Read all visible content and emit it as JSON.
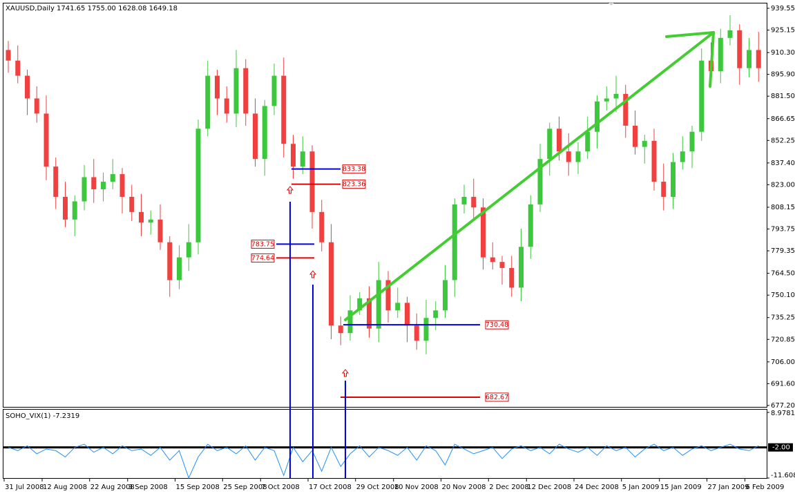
{
  "chart_data": [
    {
      "type": "candlestick",
      "title": "XAUUSD,Daily  1741.65 1755.00 1628.08 1649.18",
      "categories": [
        "31 Jul 2008",
        null,
        null,
        null,
        "12 Aug 2008",
        null,
        null,
        null,
        null,
        "22 Aug 2008",
        null,
        null,
        null,
        "3 Sep 2008",
        null,
        null,
        null,
        null,
        "15 Sep 2008",
        null,
        null,
        null,
        null,
        "25 Sep 2008",
        null,
        null,
        null,
        "7 Oct 2008",
        null,
        null,
        null,
        null,
        "17 Oct 2008",
        null,
        null,
        null,
        null,
        "29 Oct 2008",
        null,
        null,
        null,
        "10 Nov 2008",
        null,
        null,
        null,
        null,
        "20 Nov 2008",
        null,
        null,
        null,
        null,
        "2 Dec 2008",
        null,
        null,
        null,
        "12 Dec 2008",
        null,
        null,
        null,
        null,
        "24 Dec 2008",
        null,
        null,
        null,
        null,
        "5 Jan 2009",
        null,
        null,
        null,
        "15 Jan 2009",
        null,
        null,
        null,
        null,
        "27 Jan 2009",
        null,
        null,
        null,
        "6 Feb 2009",
        null
      ],
      "open": [
        912,
        905,
        895,
        880,
        870,
        835,
        815,
        800,
        812,
        828,
        820,
        825,
        830,
        815,
        805,
        798,
        800,
        785,
        760,
        775,
        785,
        860,
        895,
        880,
        870,
        900,
        870,
        840,
        875,
        895,
        850,
        835,
        845,
        805,
        785,
        730,
        725,
        740,
        748,
        728,
        760,
        740,
        745,
        730,
        720,
        735,
        740,
        760,
        810,
        815,
        808,
        775,
        772,
        768,
        755,
        782,
        810,
        840,
        860,
        845,
        838,
        845,
        858,
        878,
        880,
        883,
        862,
        848,
        852,
        825,
        815,
        838,
        845,
        858,
        905,
        898,
        920,
        925,
        900,
        912
      ],
      "high": [
        918,
        915,
        899,
        888,
        882,
        841,
        825,
        816,
        836,
        840,
        831,
        840,
        834,
        823,
        817,
        806,
        810,
        789,
        783,
        797,
        866,
        905,
        899,
        888,
        912,
        906,
        880,
        879,
        903,
        907,
        856,
        855,
        849,
        813,
        797,
        736,
        750,
        752,
        756,
        772,
        766,
        755,
        749,
        738,
        747,
        746,
        770,
        814,
        823,
        827,
        814,
        785,
        776,
        776,
        794,
        816,
        850,
        864,
        868,
        857,
        851,
        868,
        882,
        888,
        895,
        889,
        872,
        856,
        860,
        837,
        844,
        855,
        862,
        913,
        917,
        926,
        935,
        929,
        920,
        924
      ],
      "low": [
        897,
        890,
        869,
        864,
        826,
        807,
        795,
        789,
        806,
        811,
        812,
        820,
        804,
        799,
        789,
        790,
        780,
        749,
        754,
        766,
        777,
        855,
        869,
        864,
        861,
        862,
        835,
        829,
        869,
        841,
        827,
        830,
        794,
        779,
        721,
        717,
        720,
        737,
        722,
        719,
        732,
        735,
        719,
        714,
        711,
        727,
        735,
        749,
        804,
        799,
        767,
        767,
        757,
        749,
        746,
        774,
        805,
        829,
        839,
        829,
        830,
        840,
        847,
        872,
        871,
        854,
        843,
        837,
        819,
        806,
        807,
        833,
        834,
        852,
        889,
        890,
        915,
        889,
        894,
        891
      ],
      "close": [
        905,
        895,
        880,
        870,
        835,
        815,
        800,
        812,
        828,
        820,
        825,
        830,
        815,
        805,
        798,
        800,
        785,
        760,
        775,
        785,
        860,
        895,
        880,
        870,
        900,
        870,
        840,
        875,
        895,
        850,
        835,
        845,
        805,
        785,
        730,
        725,
        740,
        748,
        728,
        760,
        740,
        745,
        730,
        720,
        735,
        740,
        760,
        810,
        815,
        808,
        775,
        772,
        768,
        755,
        782,
        810,
        840,
        860,
        845,
        838,
        845,
        858,
        878,
        880,
        883,
        862,
        848,
        852,
        825,
        815,
        838,
        845,
        858,
        905,
        898,
        920,
        925,
        900,
        912,
        900
      ],
      "up_color": "#3cc83c",
      "down_color": "#f04040",
      "ylim": [
        675.8,
        943.2
      ],
      "yticks": [
        939.55,
        925.15,
        {
          "value": 910.3,
          "label": "910.30"
        },
        {
          "value": 895.9,
          "label": "895.90"
        },
        {
          "value": 881.5,
          "label": "881.50"
        },
        866.65,
        852.25,
        {
          "value": 837.4,
          "label": "837.40"
        },
        {
          "value": 823,
          "label": "823.00"
        },
        808.15,
        793.75,
        779.35,
        {
          "value": 764.5,
          "label": "764.50"
        },
        {
          "value": 750.1,
          "label": "750.10"
        },
        735.25,
        720.85,
        {
          "value": 706,
          "label": "706.00"
        },
        {
          "value": 691.6,
          "label": "691.60"
        },
        {
          "value": 677.2,
          "label": "677.20"
        }
      ],
      "levels": [
        {
          "value": 833.38,
          "color": "#0000e0"
        },
        {
          "value": 823.36,
          "color": "#e00000"
        },
        {
          "value": 783.75,
          "color": "#0000e0"
        },
        {
          "value": 774.64,
          "color": "#e00000"
        },
        {
          "value": 730.48,
          "color": "#0000e0"
        },
        {
          "value": 682.67,
          "color": "#e00000"
        }
      ]
    },
    {
      "type": "line",
      "title": "SOHO_VIX(1) -7.2319",
      "color": "#1e90ff",
      "values": [
        -2,
        -3,
        -1.5,
        -4,
        -2.5,
        -3,
        -5,
        -2,
        -1,
        -3.5,
        -2,
        -4,
        -1.5,
        -3,
        -2.5,
        -4.5,
        -2,
        -6,
        -3,
        -11.6,
        -5,
        -1,
        -3,
        -2,
        -4,
        -1.5,
        -6,
        -2,
        -3,
        -10.8,
        -2,
        -6.5,
        -3,
        -9.5,
        -2,
        -8,
        -4,
        -1.5,
        -5,
        -2,
        -3,
        -4.5,
        -2,
        -6,
        -1.5,
        -3,
        -7.5,
        -1,
        -2.5,
        -4,
        -3,
        -2,
        -5.5,
        -2.5,
        -1.5,
        -3,
        -2,
        -4,
        -1,
        -2.5,
        -3.5,
        -2,
        -4.5,
        -1.5,
        -3,
        -2,
        -5,
        -2.5,
        -1,
        -3,
        -2,
        -4.5,
        -2.5,
        -1.5,
        -3,
        -2,
        -1,
        -2.5,
        -3,
        -1.5
      ],
      "ylim": [
        -11.6087,
        8.9781
      ],
      "yticks": [
        8.9781,
        -11.6087
      ],
      "level": {
        "value": -2,
        "label": "-2.00"
      }
    }
  ]
}
